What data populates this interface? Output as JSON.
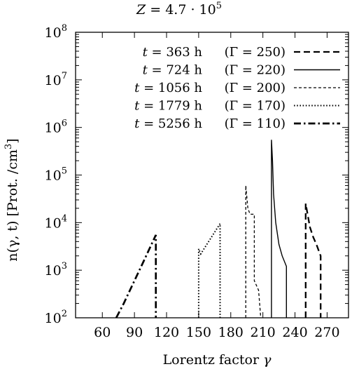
{
  "chart_data": {
    "type": "line",
    "title": {
      "prefix": "Z",
      "eq": " = 4.7 · 10",
      "exp": "5"
    },
    "xlabel": {
      "text": "Lorentz  factor  ",
      "var": "γ"
    },
    "ylabel": {
      "main": "n(γ, t)   [Prot. /cm",
      "exp": "3",
      "close": "]"
    },
    "xlim": [
      35,
      290
    ],
    "ylim_log10": [
      2,
      8
    ],
    "yscale": "log",
    "x_ticks": [
      60,
      90,
      120,
      150,
      180,
      210,
      240,
      270
    ],
    "y_ticks": [
      {
        "base": "10",
        "exp": "2",
        "log": 2
      },
      {
        "base": "10",
        "exp": "3",
        "log": 3
      },
      {
        "base": "10",
        "exp": "4",
        "log": 4
      },
      {
        "base": "10",
        "exp": "5",
        "log": 5
      },
      {
        "base": "10",
        "exp": "6",
        "log": 6
      },
      {
        "base": "10",
        "exp": "7",
        "log": 7
      },
      {
        "base": "10",
        "exp": "8",
        "log": 8
      }
    ],
    "legend_position": "top-right",
    "series": [
      {
        "t_label": "t",
        "t_value": " = 363 h",
        "gamma_label": "(Γ = 250)",
        "style": "dashed",
        "points": [
          [
            250,
            100
          ],
          [
            250,
            25000
          ],
          [
            254,
            8000
          ],
          [
            257,
            5000
          ],
          [
            260,
            3500
          ],
          [
            264,
            2000
          ],
          [
            264,
            100
          ]
        ]
      },
      {
        "t_label": "t",
        "t_value": " = 724 h",
        "gamma_label": "(Γ = 220)",
        "style": "solid",
        "points": [
          [
            218,
            100
          ],
          [
            218,
            550000
          ],
          [
            219,
            200000
          ],
          [
            220,
            40000
          ],
          [
            222,
            10000
          ],
          [
            225,
            3500
          ],
          [
            228,
            2000
          ],
          [
            232,
            1200
          ],
          [
            232,
            100
          ]
        ]
      },
      {
        "t_label": "t",
        "t_value": " = 1056 h",
        "gamma_label": "(Γ = 200)",
        "style": "short-dashed",
        "points": [
          [
            194,
            100
          ],
          [
            194,
            60000
          ],
          [
            196,
            20000
          ],
          [
            198,
            15000
          ],
          [
            202,
            15000
          ],
          [
            202,
            600
          ],
          [
            206,
            380
          ],
          [
            208,
            100
          ]
        ]
      },
      {
        "t_label": "t",
        "t_value": " = 1779 h",
        "gamma_label": "(Γ = 170)",
        "style": "dotted",
        "points": [
          [
            150,
            100
          ],
          [
            150,
            2800
          ],
          [
            152,
            2200
          ],
          [
            170,
            9500
          ],
          [
            170,
            100
          ]
        ]
      },
      {
        "t_label": "t",
        "t_value": " = 5256 h",
        "gamma_label": "(Γ = 110)",
        "style": "dash-dot",
        "points": [
          [
            73,
            100
          ],
          [
            80,
            200
          ],
          [
            90,
            600
          ],
          [
            100,
            1800
          ],
          [
            110,
            5500
          ],
          [
            110,
            100
          ]
        ]
      }
    ]
  }
}
